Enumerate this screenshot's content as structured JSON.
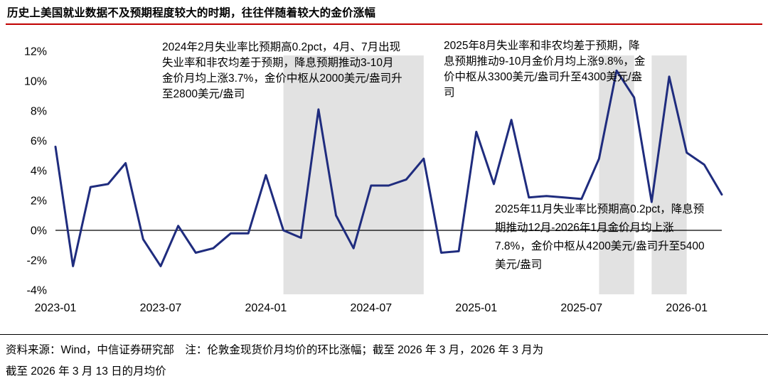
{
  "title": "历史上美国就业数据不及预期程度较大的时期，往往伴随着较大的金价涨幅",
  "chart_data": {
    "type": "line",
    "x": [
      "2023-01",
      "2023-02",
      "2023-03",
      "2023-04",
      "2023-05",
      "2023-06",
      "2023-07",
      "2023-08",
      "2023-09",
      "2023-10",
      "2023-11",
      "2023-12",
      "2024-01",
      "2024-02",
      "2024-03",
      "2024-04",
      "2024-05",
      "2024-06",
      "2024-07",
      "2024-08",
      "2024-09",
      "2024-10",
      "2024-11",
      "2024-12",
      "2025-01",
      "2025-02",
      "2025-03",
      "2025-04",
      "2025-05",
      "2025-06",
      "2025-07",
      "2025-08",
      "2025-09",
      "2025-10",
      "2025-11",
      "2025-12",
      "2026-01",
      "2026-02",
      "2026-03"
    ],
    "series": [
      {
        "name": "伦敦金现货价月均价的环比涨幅",
        "values": [
          5.6,
          -2.4,
          2.9,
          3.1,
          4.5,
          -0.6,
          -2.4,
          0.3,
          -1.5,
          -1.2,
          -0.2,
          -0.2,
          3.7,
          0.0,
          -0.5,
          8.1,
          1.0,
          -1.2,
          3.0,
          3.0,
          3.4,
          4.8,
          -1.5,
          -1.4,
          6.6,
          3.1,
          7.4,
          2.2,
          2.3,
          2.2,
          2.1,
          4.8,
          10.7,
          8.9,
          1.9,
          10.3,
          5.2,
          4.4,
          2.4
        ]
      }
    ],
    "ylim": [
      -4,
      12
    ],
    "yticks": [
      12,
      10,
      8,
      6,
      4,
      2,
      0,
      -2,
      -4
    ],
    "ytick_suffix": "%",
    "xticks": [
      "2023-01",
      "2023-07",
      "2024-01",
      "2024-07",
      "2025-01",
      "2025-07",
      "2026-01"
    ],
    "highlight_bands": [
      {
        "from": "2024-02",
        "to": "2024-10"
      },
      {
        "from": "2025-08",
        "to": "2025-10"
      },
      {
        "from": "2025-11",
        "to": "2026-01"
      }
    ],
    "line_color": "#1F2C7E",
    "band_color": "#E2E2E2",
    "grid": false,
    "legend": "none"
  },
  "annotations": [
    {
      "text": "2024年2月失业率比预期高0.2pct，4月、7月出现失业率和非农均差于预期，降息预期推动3-10月金价月均上涨3.7%，金价中枢从2000美元/盎司升至2800美元/盎司"
    },
    {
      "text": "2025年8月失业率和非农均差于预期，降息预期推动9-10月金价月均上涨9.8%，金价中枢从3300美元/盎司升至4300美元/盎司"
    },
    {
      "text": "2025年11月失业率比预期高0.2pct，降息预期推动12月-2026年1月金价月均上涨7.8%，金价中枢从4200美元/盎司升至5400美元/盎司"
    }
  ],
  "footer": {
    "line1": "资料来源：Wind，中信证券研究部　注：伦敦金现货价月均价的环比涨幅；截至 2026 年 3 月，2026 年 3 月为",
    "line2": "截至 2026 年 3 月 13 日的月均价"
  }
}
